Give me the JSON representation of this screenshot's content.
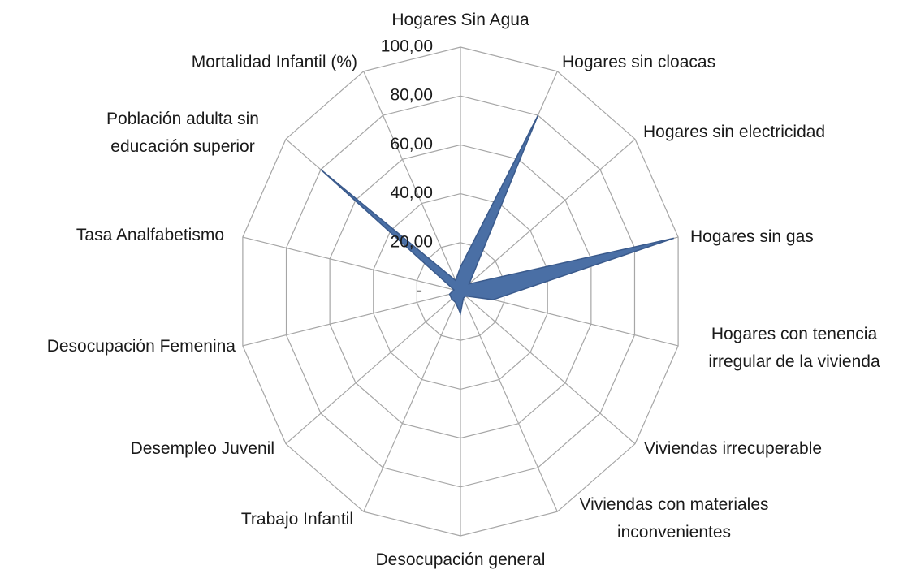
{
  "chart_data": {
    "type": "radar",
    "categories": [
      "Hogares Sin Agua",
      "Hogares sin cloacas",
      "Hogares sin electricidad",
      "Hogares sin gas",
      "Hogares con tenencia irregular de la vivienda",
      "Viviendas irrecuperable",
      "Viviendas con materiales inconvenientes",
      "Desocupación general",
      "Trabajo Infantil",
      "Desempleo Juvenil",
      "Desocupación Femenina",
      "Tasa Analfabetismo",
      "Población adulta  sin educación superior",
      "Mortalidad Infantil (%)"
    ],
    "values": [
      10,
      80,
      5,
      98,
      15,
      3,
      3,
      9,
      5,
      5,
      5,
      3,
      80,
      5
    ],
    "color": "#4a6fa5",
    "ylim": [
      0,
      100
    ],
    "yticks": [
      {
        "value": 0,
        "label": "-"
      },
      {
        "value": 20,
        "label": "20,00"
      },
      {
        "value": 40,
        "label": "40,00"
      },
      {
        "value": 60,
        "label": "60,00"
      },
      {
        "value": 80,
        "label": "80,00"
      },
      {
        "value": 100,
        "label": "100,00"
      }
    ],
    "grid": true
  }
}
